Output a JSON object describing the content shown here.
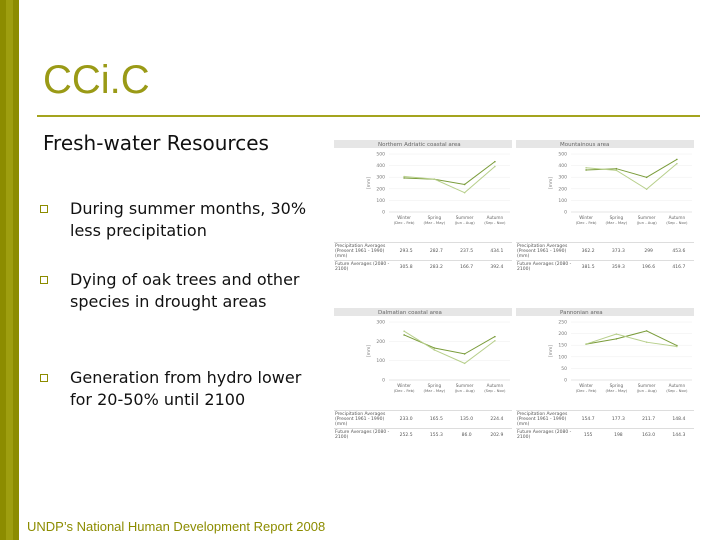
{
  "slide": {
    "title": "CCi.C",
    "subtitle": "Fresh-water Resources",
    "bullets": [
      "During summer months, 30% less precipitation",
      "Dying of oak trees and other species in drought areas",
      "Generation from hydro lower for 20-50% until 2100"
    ],
    "source": "UNDP’s National Human Development Report 2008"
  },
  "colors": {
    "accent": "#8c8c00",
    "title": "#9a9a16",
    "present_line": "#7a9c3a",
    "future_line": "#b7cf8b"
  },
  "chart_data": [
    {
      "type": "line",
      "title": "Northern Adriatic coastal area",
      "ylabel": "[mm]",
      "ylim": [
        0,
        500
      ],
      "yticks": [
        "500",
        "400",
        "300",
        "200",
        "100",
        "0"
      ],
      "categories": [
        "Winter (Dec - Feb)",
        "Spring (Mar - May)",
        "Summer (Jun - Aug)",
        "Autumn (Sep - Nov)"
      ],
      "series": [
        {
          "name": "Precipitation Averages (Present 1961 - 1990) (mm)",
          "values": [
            293.5,
            282.7,
            237.5,
            434.1
          ],
          "labels": [
            "293.5",
            "282.7",
            "237.5",
            "434.1"
          ]
        },
        {
          "name": "Future Averages (2080 - 2100)",
          "values": [
            305.8,
            283.2,
            166.7,
            392.4
          ],
          "labels": [
            "305.8",
            "283.2",
            "166.7",
            "392.4"
          ]
        }
      ]
    },
    {
      "type": "line",
      "title": "Mountainous area",
      "ylabel": "[mm]",
      "ylim": [
        0,
        500
      ],
      "yticks": [
        "500",
        "400",
        "300",
        "200",
        "100",
        "0"
      ],
      "categories": [
        "Winter (Dec - Feb)",
        "Spring (Mar - May)",
        "Summer (Jun - Aug)",
        "Autumn (Sep - Nov)"
      ],
      "series": [
        {
          "name": "Precipitation Averages (Present 1961 - 1990) (mm)",
          "values": [
            362.2,
            373.3,
            299,
            453.6
          ],
          "labels": [
            "362.2",
            "373.3",
            "299",
            "453.6"
          ]
        },
        {
          "name": "Future Averages (2080 - 2100)",
          "values": [
            381.5,
            359.3,
            196.6,
            416.7
          ],
          "labels": [
            "381.5",
            "359.3",
            "196.6",
            "416.7"
          ]
        }
      ]
    },
    {
      "type": "line",
      "title": "Dalmatian coastal area",
      "ylabel": "[mm]",
      "ylim": [
        0,
        300
      ],
      "yticks": [
        "300",
        "200",
        "100",
        "0"
      ],
      "categories": [
        "Winter (Dec - Feb)",
        "Spring (Mar - May)",
        "Summer (Jun - Aug)",
        "Autumn (Sep - Nov)"
      ],
      "series": [
        {
          "name": "Precipitation Averages (Present 1961 - 1990) (mm)",
          "values": [
            233,
            165.5,
            135,
            224.4
          ],
          "labels": [
            "233.0",
            "165.5",
            "135.0",
            "224.4"
          ]
        },
        {
          "name": "Future Averages (2080 - 2100)",
          "values": [
            252.5,
            155.3,
            86,
            202.9
          ],
          "labels": [
            "252.5",
            "155.3",
            "86.0",
            "202.9"
          ]
        }
      ]
    },
    {
      "type": "line",
      "title": "Pannonian area",
      "ylabel": "[mm]",
      "ylim": [
        0,
        250
      ],
      "yticks": [
        "250",
        "200",
        "150",
        "100",
        "50",
        "0"
      ],
      "categories": [
        "Winter (Dec - Feb)",
        "Spring (Mar - May)",
        "Summer (Jun - Aug)",
        "Autumn (Sep - Nov)"
      ],
      "series": [
        {
          "name": "Precipitation Averages (Present 1961 - 1990) (mm)",
          "values": [
            154.7,
            177.3,
            211.7,
            148.4
          ],
          "labels": [
            "154.7",
            "177.3",
            "211.7",
            "148.4"
          ]
        },
        {
          "name": "Future Averages (2080 - 2100)",
          "values": [
            155,
            198,
            163,
            144.3
          ],
          "labels": [
            "155",
            "198",
            "163.0",
            "144.3"
          ]
        }
      ]
    }
  ]
}
